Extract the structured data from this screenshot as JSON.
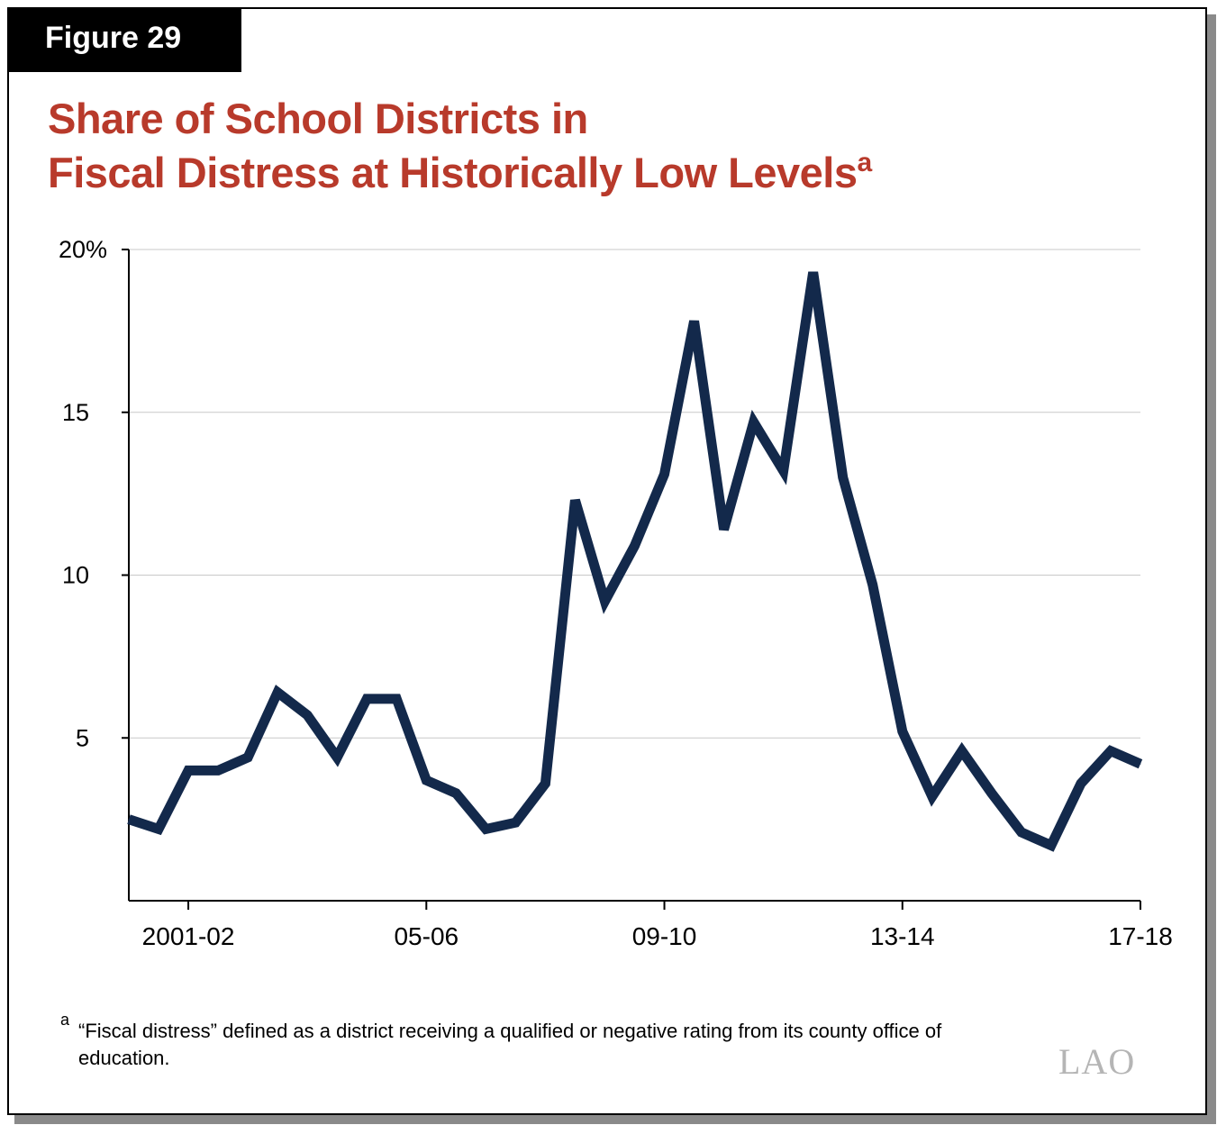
{
  "figure_label": "Figure 29",
  "title_line1": "Share of School Districts in",
  "title_line2": "Fiscal Distress at Historically Low Levels",
  "title_footnote_mark": "a",
  "footnote_mark": "a",
  "footnote_text": "“Fiscal distress” defined as a district receiving a qualified or negative rating from its county office of education.",
  "logo_text": "LAO",
  "colors": {
    "line": "#13294b",
    "title": "#b83a2b",
    "grid": "#c8c8c8"
  },
  "chart_data": {
    "type": "line",
    "title": "Share of School Districts in Fiscal Distress at Historically Low Levels",
    "xlabel": "",
    "ylabel": "",
    "ylim": [
      0,
      20
    ],
    "y_ticks": [
      {
        "value": 5,
        "label": "5"
      },
      {
        "value": 10,
        "label": "10"
      },
      {
        "value": 15,
        "label": "15"
      },
      {
        "value": 20,
        "label": "20%"
      }
    ],
    "x_ticks": [
      {
        "index": 2,
        "label": "2001-02"
      },
      {
        "index": 10,
        "label": "05-06"
      },
      {
        "index": 18,
        "label": "09-10"
      },
      {
        "index": 26,
        "label": "13-14"
      },
      {
        "index": 34,
        "label": "17-18"
      }
    ],
    "grid": true,
    "values": [
      2.5,
      2.2,
      4.0,
      4.0,
      4.4,
      6.4,
      5.7,
      4.4,
      6.2,
      6.2,
      3.7,
      3.3,
      2.2,
      2.4,
      3.6,
      12.3,
      9.2,
      10.9,
      13.1,
      17.8,
      11.4,
      14.7,
      13.2,
      19.3,
      13.0,
      9.7,
      5.2,
      3.2,
      4.6,
      3.3,
      2.1,
      1.7,
      3.6,
      4.6,
      4.2
    ]
  }
}
